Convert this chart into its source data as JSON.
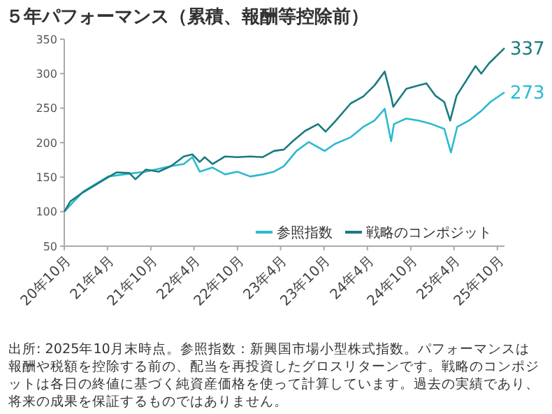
{
  "chart_data": {
    "type": "line",
    "title": "５年パフォーマンス（累積、報酬等控除前）",
    "xlim": [
      "2020-10-01",
      "2025-10-31"
    ],
    "xticks": [
      {
        "value": "2020-10-01",
        "label": "20年10月"
      },
      {
        "value": "2021-04-01",
        "label": "21年4月"
      },
      {
        "value": "2021-10-01",
        "label": "21年10月"
      },
      {
        "value": "2022-04-01",
        "label": "22年4月"
      },
      {
        "value": "2022-10-01",
        "label": "22年10月"
      },
      {
        "value": "2023-04-01",
        "label": "23年4月"
      },
      {
        "value": "2023-10-01",
        "label": "23年10月"
      },
      {
        "value": "2024-04-01",
        "label": "24年4月"
      },
      {
        "value": "2024-10-01",
        "label": "24年10月"
      },
      {
        "value": "2025-04-01",
        "label": "25年4月"
      },
      {
        "value": "2025-10-01",
        "label": "25年10月"
      }
    ],
    "ylim": [
      50,
      350
    ],
    "yticks": [
      50,
      100,
      150,
      200,
      250,
      300,
      350
    ],
    "grid": false,
    "legend": "bottom right",
    "line_style": "solid",
    "marker": "none",
    "series": [
      {
        "name": "参照指数",
        "color": "#2bbad0",
        "x": [
          "2020-10-01",
          "2020-12-19",
          "2021-04-04",
          "2021-07-02",
          "2021-09-10",
          "2021-12-25",
          "2022-02-17",
          "2022-03-25",
          "2022-04-25",
          "2022-06-18",
          "2022-08-10",
          "2022-10-01",
          "2022-11-24",
          "2023-01-16",
          "2023-03-04",
          "2023-04-15",
          "2023-06-07",
          "2023-07-29",
          "2023-10-04",
          "2023-11-15",
          "2024-01-22",
          "2024-03-15",
          "2024-05-01",
          "2024-06-13",
          "2024-07-10",
          "2024-07-22",
          "2024-09-12",
          "2024-11-04",
          "2024-12-27",
          "2025-02-19",
          "2025-03-19",
          "2025-04-15",
          "2025-06-03",
          "2025-07-25",
          "2025-09-02",
          "2025-10-31"
        ],
        "values": [
          100,
          129,
          151,
          155,
          158,
          166,
          169,
          179,
          158,
          164,
          154,
          158,
          151,
          154,
          158,
          166,
          188,
          201,
          188,
          198,
          208,
          223,
          232,
          249,
          202,
          227,
          235,
          232,
          227,
          220,
          186,
          223,
          232,
          246,
          259,
          273
        ]
      },
      {
        "name": "戦略のコンポジット",
        "color": "#1a7b80",
        "x": [
          "2020-10-01",
          "2020-10-27",
          "2020-12-19",
          "2021-02-11",
          "2021-04-04",
          "2021-05-10",
          "2021-07-02",
          "2021-07-28",
          "2021-09-10",
          "2021-11-03",
          "2021-12-25",
          "2022-02-17",
          "2022-03-25",
          "2022-04-25",
          "2022-05-16",
          "2022-06-18",
          "2022-08-10",
          "2022-10-01",
          "2022-11-24",
          "2023-01-16",
          "2023-03-04",
          "2023-04-15",
          "2023-05-22",
          "2023-07-13",
          "2023-09-06",
          "2023-10-08",
          "2023-11-15",
          "2024-01-22",
          "2024-03-15",
          "2024-05-01",
          "2024-06-13",
          "2024-07-10",
          "2024-07-19",
          "2024-09-12",
          "2024-11-04",
          "2024-12-06",
          "2025-01-13",
          "2025-02-19",
          "2025-03-16",
          "2025-04-12",
          "2025-06-03",
          "2025-07-01",
          "2025-07-25",
          "2025-08-27",
          "2025-10-31"
        ],
        "values": [
          100,
          115,
          128,
          139,
          150,
          157,
          156,
          147,
          161,
          158,
          166,
          180,
          183,
          172,
          179,
          169,
          180,
          179,
          180,
          179,
          188,
          190,
          202,
          217,
          227,
          216,
          230,
          257,
          267,
          283,
          303,
          267,
          252,
          278,
          283,
          286,
          268,
          259,
          232,
          268,
          296,
          311,
          300,
          315,
          337
        ]
      }
    ],
    "annotations": [
      {
        "text": "273",
        "x": "2025-10-31",
        "y": 273
      },
      {
        "text": "337",
        "x": "2025-10-31",
        "y": 337
      },
      "出所: 2025年10月末時点。参照指数：新興国市場小型株式指数。パフォーマンスは報酬や税額を控除する前の、配当を再投資したグロスリターンです。戦略のコンポジットは各日の終値に基づく純資産価格を使って計算しています。過去の実績であり、将来の成果を保証するものではありません。"
    ]
  }
}
